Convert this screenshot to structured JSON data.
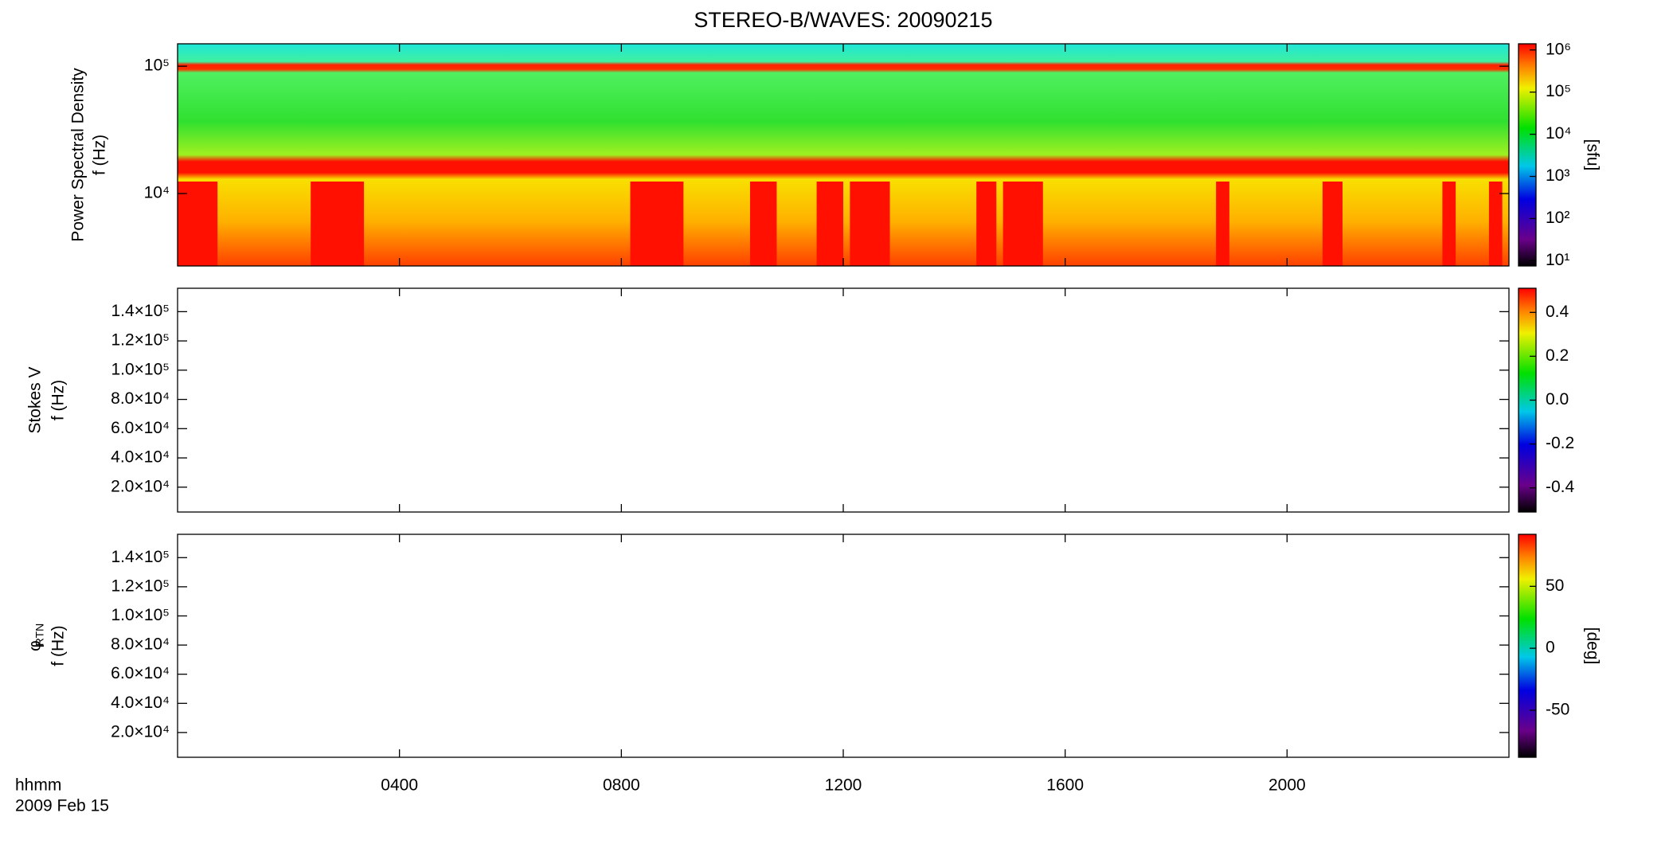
{
  "chart_data": {
    "type": "spectrogram",
    "title": "STEREO-B/WAVES: 20090215",
    "xlabel": "hhmm",
    "date": "2009 Feb 15",
    "xlim": [
      0,
      24
    ],
    "xticks": [
      {
        "value": 4,
        "label": "0400"
      },
      {
        "value": 8,
        "label": "0800"
      },
      {
        "value": 12,
        "label": "1200"
      },
      {
        "value": 16,
        "label": "1600"
      },
      {
        "value": 20,
        "label": "2000"
      }
    ],
    "panels": [
      {
        "ylabel": [
          "Power Spectral Density",
          "f (Hz)"
        ],
        "log": true,
        "ylim": [
          2700,
          150000
        ],
        "yticks": [
          {
            "value": 10000,
            "label": "10⁴"
          },
          {
            "value": 100000,
            "label": "10⁵"
          }
        ],
        "colorbar": {
          "label": "[sfu]",
          "log": true,
          "lim": [
            7.5,
            1400000
          ],
          "ticks": [
            {
              "value": 10,
              "label": "10¹"
            },
            {
              "value": 100,
              "label": "10²"
            },
            {
              "value": 1000,
              "label": "10³"
            },
            {
              "value": 10000,
              "label": "10⁴"
            },
            {
              "value": 100000,
              "label": "10⁵"
            },
            {
              "value": 1000000,
              "label": "10⁶"
            }
          ]
        }
      },
      {
        "ylabel": [
          "Stokes V",
          "f (Hz)"
        ],
        "log": false,
        "ylim": [
          3000,
          156000
        ],
        "yticks": [
          {
            "value": 20000,
            "label": "2.0×10⁴"
          },
          {
            "value": 40000,
            "label": "4.0×10⁴"
          },
          {
            "value": 60000,
            "label": "6.0×10⁴"
          },
          {
            "value": 80000,
            "label": "8.0×10⁴"
          },
          {
            "value": 100000,
            "label": "1.0×10⁵"
          },
          {
            "value": 120000,
            "label": "1.2×10⁵"
          },
          {
            "value": 140000,
            "label": "1.4×10⁵"
          }
        ],
        "colorbar": {
          "log": false,
          "lim": [
            -0.51,
            0.51
          ],
          "ticks": [
            -0.4,
            -0.2,
            {
              "value": 0,
              "label": "0.0"
            },
            0.2,
            0.4
          ]
        }
      },
      {
        "ylabel": [
          "φ",
          "f (Hz)"
        ],
        "ysub": "RTN",
        "log": false,
        "ylim": [
          3000,
          156000
        ],
        "yticks": [
          {
            "value": 20000,
            "label": "2.0×10⁴"
          },
          {
            "value": 40000,
            "label": "4.0×10⁴"
          },
          {
            "value": 60000,
            "label": "6.0×10⁴"
          },
          {
            "value": 80000,
            "label": "8.0×10⁴"
          },
          {
            "value": 100000,
            "label": "1.0×10⁵"
          },
          {
            "value": 120000,
            "label": "1.2×10⁵"
          },
          {
            "value": 140000,
            "label": "1.4×10⁵"
          }
        ],
        "colorbar": {
          "label": "[deg]",
          "log": false,
          "lim": [
            -88,
            92
          ],
          "ticks": [
            -50,
            0,
            50
          ]
        }
      }
    ]
  }
}
